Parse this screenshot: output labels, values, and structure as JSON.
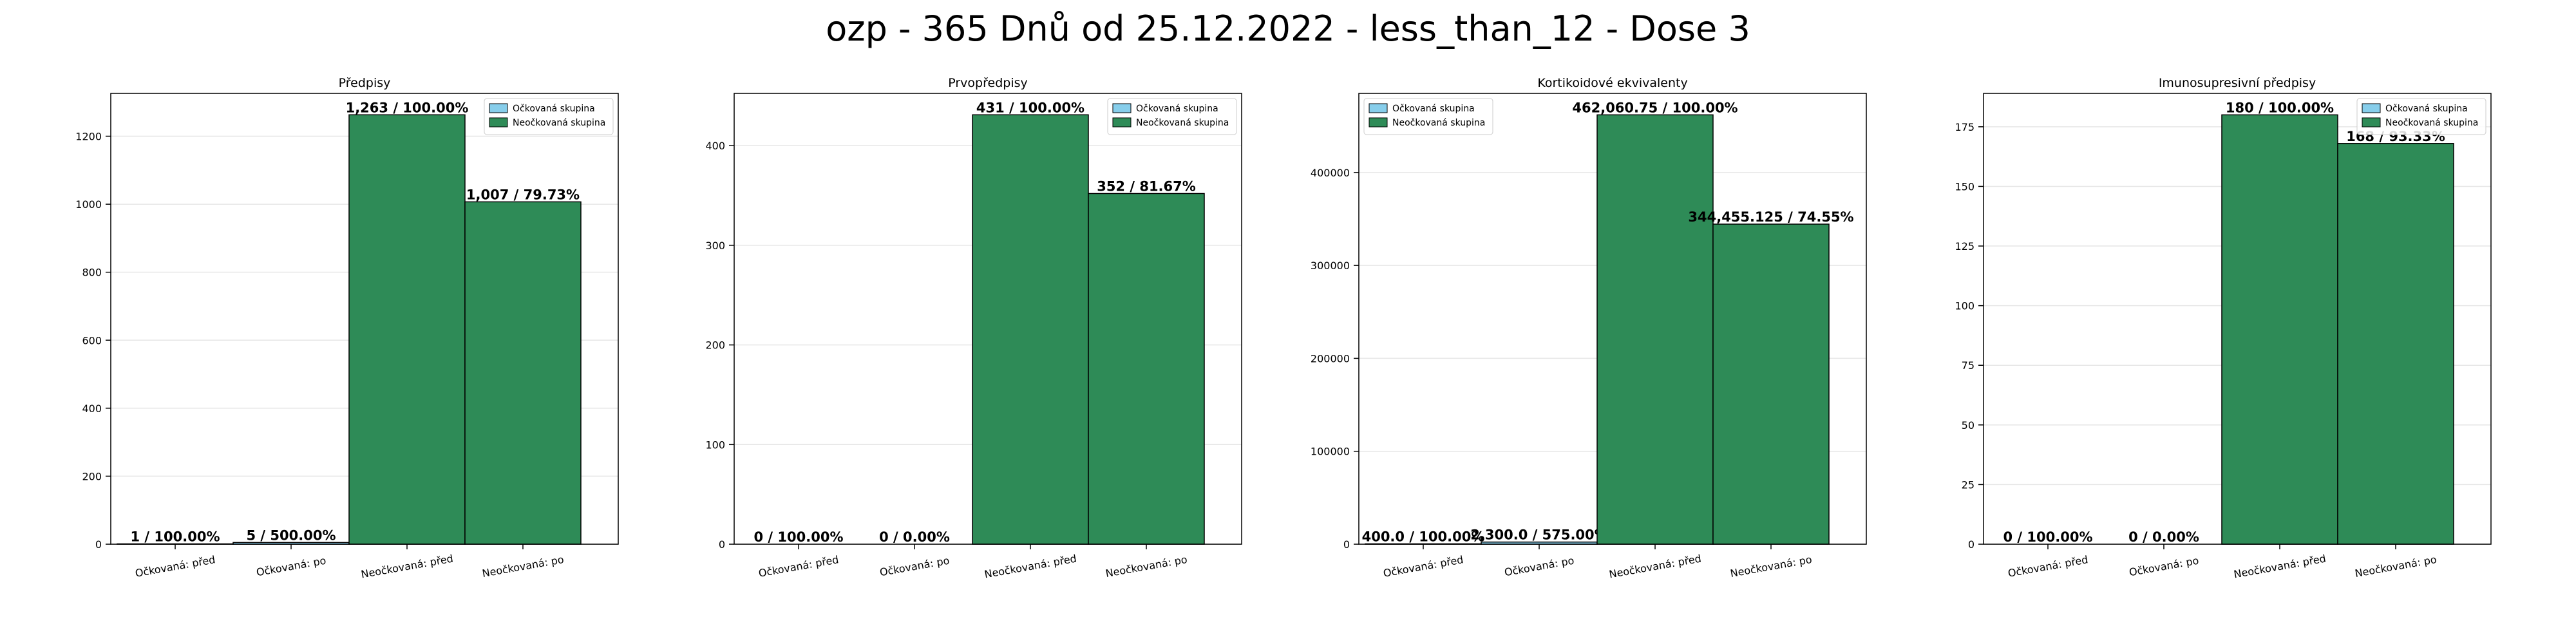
{
  "suptitle": "ozp - 365 Dnů od 25.12.2022 - less_than_12 - Dose 3",
  "colors": {
    "vaccinated": "#87CEEB",
    "unvaccinated": "#2E8B57",
    "edge": "#000000",
    "grid": "#e6e6e6"
  },
  "chart_data": [
    {
      "type": "bar",
      "title": "Předpisy",
      "categories": [
        "Očkovaná: před",
        "Očkovaná: po",
        "Neočkovaná: před",
        "Neočkovaná: po"
      ],
      "series": [
        {
          "name": "Očkovaná skupina",
          "values": [
            1,
            5,
            null,
            null
          ],
          "labels": [
            "1 / 100.00%",
            "5 / 500.00%",
            null,
            null
          ]
        },
        {
          "name": "Neočkovaná skupina",
          "values": [
            null,
            null,
            1263,
            1007
          ],
          "labels": [
            null,
            null,
            "1,263 / 100.00%",
            "1,007 / 79.73%"
          ]
        }
      ],
      "yticks": [
        0,
        200,
        400,
        600,
        800,
        1000,
        1200
      ],
      "ylim": [
        0,
        1326
      ],
      "legend": "upper right",
      "grid": true
    },
    {
      "type": "bar",
      "title": "Prvopředpisy",
      "categories": [
        "Očkovaná: před",
        "Očkovaná: po",
        "Neočkovaná: před",
        "Neočkovaná: po"
      ],
      "series": [
        {
          "name": "Očkovaná skupina",
          "values": [
            0,
            0,
            null,
            null
          ],
          "labels": [
            "0 / 100.00%",
            "0 / 0.00%",
            null,
            null
          ]
        },
        {
          "name": "Neočkovaná skupina",
          "values": [
            null,
            null,
            431,
            352
          ],
          "labels": [
            null,
            null,
            "431 / 100.00%",
            "352 / 81.67%"
          ]
        }
      ],
      "yticks": [
        0,
        100,
        200,
        300,
        400
      ],
      "ylim": [
        0,
        452.5
      ],
      "legend": "upper right",
      "grid": true
    },
    {
      "type": "bar",
      "title": "Kortikoidové ekvivalenty",
      "categories": [
        "Očkovaná: před",
        "Očkovaná: po",
        "Neočkovaná: před",
        "Neočkovaná: po"
      ],
      "series": [
        {
          "name": "Očkovaná skupina",
          "values": [
            400.0,
            2300.0,
            null,
            null
          ],
          "labels": [
            "400.0 / 100.00%",
            "2,300.0 / 575.00%",
            null,
            null
          ]
        },
        {
          "name": "Neočkovaná skupina",
          "values": [
            null,
            null,
            462060.75,
            344455.125
          ],
          "labels": [
            null,
            null,
            "462,060.75 / 100.00%",
            "344,455.125 / 74.55%"
          ]
        }
      ],
      "yticks": [
        0,
        100000,
        200000,
        300000,
        400000
      ],
      "ylim": [
        0,
        485163
      ],
      "legend": "upper left",
      "grid": true
    },
    {
      "type": "bar",
      "title": "Imunosupresivní předpisy",
      "categories": [
        "Očkovaná: před",
        "Očkovaná: po",
        "Neočkovaná: před",
        "Neočkovaná: po"
      ],
      "series": [
        {
          "name": "Očkovaná skupina",
          "values": [
            0,
            0,
            null,
            null
          ],
          "labels": [
            "0 / 100.00%",
            "0 / 0.00%",
            null,
            null
          ]
        },
        {
          "name": "Neočkovaná skupina",
          "values": [
            null,
            null,
            180,
            168
          ],
          "labels": [
            null,
            null,
            "180 / 100.00%",
            "168 / 93.33%"
          ]
        }
      ],
      "yticks": [
        0,
        25,
        50,
        75,
        100,
        125,
        150,
        175
      ],
      "ylim": [
        0,
        189
      ],
      "legend": "upper right",
      "grid": true
    }
  ]
}
